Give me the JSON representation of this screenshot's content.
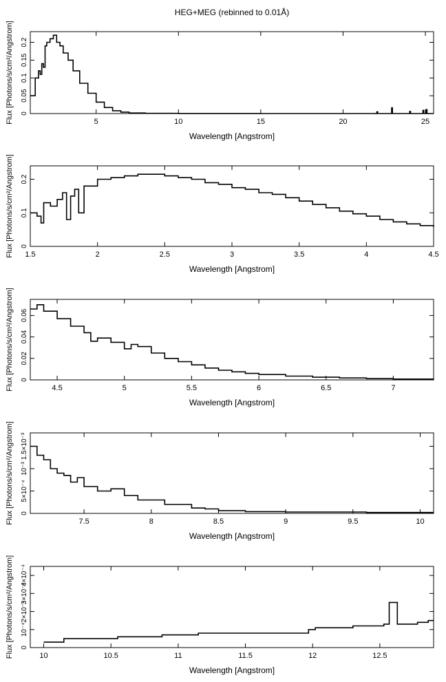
{
  "figure_title": "HEG+MEG (rebinned to 0.01Å)",
  "chart_data": [
    {
      "type": "step",
      "title": "HEG+MEG (rebinned to 0.01Å)",
      "xlabel": "Wavelength [Angstrom]",
      "ylabel": "Flux [Photons/s/cm²/Angstrom]",
      "xlim": [
        1.0,
        25.5
      ],
      "ylim": [
        0,
        0.23
      ],
      "xticks": [
        5,
        10,
        15,
        20,
        25
      ],
      "xtick_labels": [
        "5",
        "10",
        "15",
        "20",
        "25"
      ],
      "yticks": [
        0,
        0.05,
        0.1,
        0.15,
        0.2
      ],
      "ytick_labels": [
        "0",
        "0.05",
        "0.1",
        "0.15",
        "0.2"
      ],
      "grid": false,
      "x": [
        1.0,
        1.3,
        1.5,
        1.6,
        1.7,
        1.8,
        1.9,
        2.0,
        2.2,
        2.4,
        2.6,
        2.8,
        3.0,
        3.3,
        3.6,
        4.0,
        4.5,
        5.0,
        5.5,
        6.0,
        6.5,
        7.0,
        8.0,
        10.0,
        15.0,
        20.0,
        22.0,
        22.05,
        22.1,
        22.9,
        22.95,
        23.0,
        24.0,
        24.05,
        24.1,
        24.8,
        24.85,
        24.9,
        25.0,
        25.05,
        25.1,
        25.5
      ],
      "y": [
        0.05,
        0.1,
        0.12,
        0.11,
        0.14,
        0.13,
        0.19,
        0.2,
        0.21,
        0.22,
        0.2,
        0.19,
        0.17,
        0.15,
        0.12,
        0.085,
        0.057,
        0.032,
        0.017,
        0.008,
        0.004,
        0.0015,
        0.0005,
        0.0001,
        0.0,
        0.0,
        0.0,
        0.005,
        0.0,
        0.0,
        0.016,
        0.0,
        0.0,
        0.006,
        0.0,
        0.0,
        0.009,
        0.0,
        0.0,
        0.011,
        0.0,
        0.0
      ]
    },
    {
      "type": "step",
      "xlabel": "Wavelength [Angstrom]",
      "ylabel": "Flux [Photons/s/cm²/Angstrom]",
      "xlim": [
        1.5,
        4.5
      ],
      "ylim": [
        0,
        0.24
      ],
      "xticks": [
        1.5,
        2,
        2.5,
        3,
        3.5,
        4,
        4.5
      ],
      "xtick_labels": [
        "1.5",
        "2",
        "2.5",
        "3",
        "3.5",
        "4",
        "4.5"
      ],
      "yticks": [
        0,
        0.1,
        0.2
      ],
      "ytick_labels": [
        "0",
        "0.1",
        "0.2"
      ],
      "grid": false,
      "x": [
        1.5,
        1.55,
        1.58,
        1.6,
        1.65,
        1.7,
        1.74,
        1.77,
        1.8,
        1.83,
        1.86,
        1.9,
        2.0,
        2.1,
        2.2,
        2.3,
        2.4,
        2.5,
        2.6,
        2.7,
        2.8,
        2.9,
        3.0,
        3.1,
        3.2,
        3.3,
        3.4,
        3.5,
        3.6,
        3.7,
        3.8,
        3.9,
        4.0,
        4.1,
        4.2,
        4.3,
        4.4,
        4.5
      ],
      "y": [
        0.1,
        0.09,
        0.07,
        0.13,
        0.12,
        0.14,
        0.16,
        0.08,
        0.15,
        0.17,
        0.1,
        0.18,
        0.2,
        0.205,
        0.21,
        0.215,
        0.215,
        0.21,
        0.205,
        0.2,
        0.19,
        0.185,
        0.175,
        0.17,
        0.16,
        0.155,
        0.145,
        0.135,
        0.125,
        0.115,
        0.105,
        0.097,
        0.09,
        0.08,
        0.073,
        0.067,
        0.062,
        0.058
      ]
    },
    {
      "type": "step",
      "xlabel": "Wavelength [Angstrom]",
      "ylabel": "Flux [Photons/s/cm²/Angstrom]",
      "xlim": [
        4.3,
        7.3
      ],
      "ylim": [
        0,
        0.075
      ],
      "xticks": [
        4.5,
        5,
        5.5,
        6,
        6.5,
        7
      ],
      "xtick_labels": [
        "4.5",
        "5",
        "5.5",
        "6",
        "6.5",
        "7"
      ],
      "yticks": [
        0,
        0.02,
        0.04,
        0.06
      ],
      "ytick_labels": [
        "0",
        "0.02",
        "0.04",
        "0.06"
      ],
      "grid": false,
      "x": [
        4.3,
        4.35,
        4.4,
        4.5,
        4.6,
        4.7,
        4.75,
        4.8,
        4.9,
        5.0,
        5.05,
        5.1,
        5.2,
        5.3,
        5.4,
        5.5,
        5.6,
        5.7,
        5.8,
        5.9,
        6.0,
        6.2,
        6.4,
        6.6,
        6.8,
        7.0,
        7.3
      ],
      "y": [
        0.066,
        0.07,
        0.064,
        0.057,
        0.05,
        0.044,
        0.036,
        0.039,
        0.035,
        0.029,
        0.033,
        0.031,
        0.025,
        0.02,
        0.017,
        0.014,
        0.011,
        0.009,
        0.0075,
        0.006,
        0.005,
        0.0035,
        0.0025,
        0.0018,
        0.0012,
        0.0008,
        0.0005
      ]
    },
    {
      "type": "step",
      "xlabel": "Wavelength [Angstrom]",
      "ylabel": "Flux [Photons/s/cm²/Angstrom]",
      "xlim": [
        7.1,
        10.1
      ],
      "ylim": [
        0,
        0.0018
      ],
      "xticks": [
        7.5,
        8,
        8.5,
        9,
        9.5,
        10
      ],
      "xtick_labels": [
        "7.5",
        "8",
        "8.5",
        "9",
        "9.5",
        "10"
      ],
      "yticks": [
        0,
        0.0005,
        0.001,
        0.0015
      ],
      "ytick_labels": [
        "0",
        "5×10⁻⁴",
        "10⁻³",
        "1.5×10⁻³"
      ],
      "grid": false,
      "x": [
        7.1,
        7.15,
        7.2,
        7.25,
        7.3,
        7.35,
        7.4,
        7.45,
        7.5,
        7.6,
        7.7,
        7.8,
        7.9,
        8.0,
        8.1,
        8.2,
        8.3,
        8.4,
        8.5,
        8.7,
        9.0,
        9.3,
        9.6,
        10.0,
        10.1
      ],
      "y": [
        0.0015,
        0.0013,
        0.0012,
        0.001,
        0.0009,
        0.00085,
        0.0007,
        0.0008,
        0.0006,
        0.0005,
        0.00055,
        0.0004,
        0.0003,
        0.0003,
        0.0002,
        0.0002,
        0.00012,
        0.0001,
        6e-05,
        4e-05,
        3e-05,
        3e-05,
        2e-05,
        2e-05,
        2e-05
      ]
    },
    {
      "type": "step",
      "xlabel": "Wavelength [Angstrom]",
      "ylabel": "Flux [Photons/s/cm²/Angstrom]",
      "xlim": [
        9.9,
        12.9
      ],
      "ylim": [
        0,
        0.00045
      ],
      "xticks": [
        10,
        10.5,
        11,
        11.5,
        12,
        12.5
      ],
      "xtick_labels": [
        "10",
        "10.5",
        "11",
        "11.5",
        "12",
        "12.5"
      ],
      "yticks": [
        0,
        0.0001,
        0.0002,
        0.0003,
        0.0004
      ],
      "ytick_labels": [
        "0",
        "10⁻⁴",
        "2×10⁻⁴",
        "3×10⁻⁴",
        "4×10⁻⁴"
      ],
      "grid": false,
      "x": [
        10.0,
        10.15,
        10.2,
        10.25,
        10.55,
        10.65,
        10.78,
        10.88,
        11.15,
        11.22,
        11.97,
        12.02,
        12.18,
        12.3,
        12.45,
        12.53,
        12.57,
        12.63,
        12.78,
        12.86
      ],
      "y": [
        3e-05,
        5e-05,
        5e-05,
        5e-05,
        6e-05,
        6e-05,
        6e-05,
        7e-05,
        8e-05,
        8e-05,
        0.0001,
        0.00011,
        0.00011,
        0.00012,
        0.00012,
        0.00013,
        0.00025,
        0.00013,
        0.00014,
        0.00015
      ]
    }
  ]
}
